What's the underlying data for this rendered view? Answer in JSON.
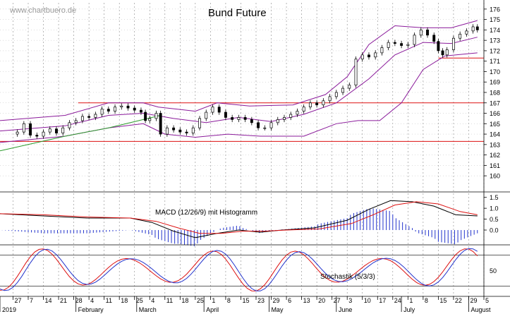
{
  "watermark": "www.chartbuero.de",
  "chart_data": [
    {
      "type": "candlestick",
      "title": "Bund Future",
      "y_ticks": [
        176,
        175,
        174,
        173,
        172,
        171,
        170,
        169,
        168,
        167,
        166,
        165,
        164,
        163,
        162,
        161,
        160
      ],
      "ylim": [
        159.4,
        176.6
      ],
      "x_range_days": [
        -10,
        213
      ],
      "horizontal_lines": [
        167.0,
        163.3,
        171.3
      ],
      "approx_series": {
        "close": [
          {
            "x": -2,
            "y": 164.2
          },
          {
            "x": 1,
            "y": 165.0
          },
          {
            "x": 4,
            "y": 163.9
          },
          {
            "x": 7,
            "y": 163.8
          },
          {
            "x": 10,
            "y": 164.2
          },
          {
            "x": 13,
            "y": 164.5
          },
          {
            "x": 16,
            "y": 164.1
          },
          {
            "x": 19,
            "y": 164.6
          },
          {
            "x": 22,
            "y": 165.1
          },
          {
            "x": 25,
            "y": 165.3
          },
          {
            "x": 28,
            "y": 165.7
          },
          {
            "x": 31,
            "y": 165.6
          },
          {
            "x": 34,
            "y": 165.9
          },
          {
            "x": 37,
            "y": 166.4
          },
          {
            "x": 40,
            "y": 166.2
          },
          {
            "x": 43,
            "y": 166.6
          },
          {
            "x": 46,
            "y": 166.7
          },
          {
            "x": 49,
            "y": 166.5
          },
          {
            "x": 52,
            "y": 166.3
          },
          {
            "x": 55,
            "y": 166.1
          },
          {
            "x": 57,
            "y": 165.3
          },
          {
            "x": 59,
            "y": 165.5
          },
          {
            "x": 62,
            "y": 166.0
          },
          {
            "x": 64,
            "y": 164.0
          },
          {
            "x": 67,
            "y": 164.6
          },
          {
            "x": 70,
            "y": 164.4
          },
          {
            "x": 73,
            "y": 164.2
          },
          {
            "x": 76,
            "y": 164.1
          },
          {
            "x": 79,
            "y": 164.6
          },
          {
            "x": 82,
            "y": 165.5
          },
          {
            "x": 85,
            "y": 166.1
          },
          {
            "x": 88,
            "y": 166.6
          },
          {
            "x": 91,
            "y": 166.1
          },
          {
            "x": 94,
            "y": 165.6
          },
          {
            "x": 97,
            "y": 165.4
          },
          {
            "x": 100,
            "y": 165.6
          },
          {
            "x": 103,
            "y": 165.4
          },
          {
            "x": 106,
            "y": 165.1
          },
          {
            "x": 109,
            "y": 164.6
          },
          {
            "x": 112,
            "y": 164.6
          },
          {
            "x": 115,
            "y": 165.1
          },
          {
            "x": 118,
            "y": 165.4
          },
          {
            "x": 121,
            "y": 165.6
          },
          {
            "x": 124,
            "y": 165.9
          },
          {
            "x": 127,
            "y": 166.2
          },
          {
            "x": 130,
            "y": 166.6
          },
          {
            "x": 133,
            "y": 167.0
          },
          {
            "x": 136,
            "y": 166.8
          },
          {
            "x": 139,
            "y": 167.2
          },
          {
            "x": 142,
            "y": 167.6
          },
          {
            "x": 145,
            "y": 168.0
          },
          {
            "x": 148,
            "y": 168.4
          },
          {
            "x": 151,
            "y": 168.7
          },
          {
            "x": 154,
            "y": 171.2
          },
          {
            "x": 157,
            "y": 171.6
          },
          {
            "x": 160,
            "y": 171.4
          },
          {
            "x": 163,
            "y": 171.8
          },
          {
            "x": 166,
            "y": 172.3
          },
          {
            "x": 169,
            "y": 172.8
          },
          {
            "x": 172,
            "y": 172.7
          },
          {
            "x": 175,
            "y": 172.5
          },
          {
            "x": 178,
            "y": 172.6
          },
          {
            "x": 181,
            "y": 173.5
          },
          {
            "x": 184,
            "y": 174.0
          },
          {
            "x": 187,
            "y": 173.5
          },
          {
            "x": 190,
            "y": 172.9
          },
          {
            "x": 192,
            "y": 172.0
          },
          {
            "x": 194,
            "y": 171.6
          },
          {
            "x": 196,
            "y": 172.1
          },
          {
            "x": 199,
            "y": 173.2
          },
          {
            "x": 202,
            "y": 173.6
          },
          {
            "x": 205,
            "y": 173.9
          },
          {
            "x": 208,
            "y": 174.3
          },
          {
            "x": 210,
            "y": 174.0
          }
        ],
        "bollinger_upper": [
          {
            "x": -10,
            "y": 165.3
          },
          {
            "x": 20,
            "y": 165.8
          },
          {
            "x": 40,
            "y": 167.0
          },
          {
            "x": 56,
            "y": 167.0
          },
          {
            "x": 63,
            "y": 166.6
          },
          {
            "x": 80,
            "y": 166.2
          },
          {
            "x": 90,
            "y": 167.0
          },
          {
            "x": 105,
            "y": 166.7
          },
          {
            "x": 125,
            "y": 166.8
          },
          {
            "x": 140,
            "y": 167.8
          },
          {
            "x": 150,
            "y": 169.5
          },
          {
            "x": 160,
            "y": 172.6
          },
          {
            "x": 172,
            "y": 174.4
          },
          {
            "x": 185,
            "y": 174.2
          },
          {
            "x": 198,
            "y": 174.2
          },
          {
            "x": 210,
            "y": 174.9
          }
        ],
        "bollinger_middle": [
          {
            "x": -10,
            "y": 164.3
          },
          {
            "x": 20,
            "y": 164.8
          },
          {
            "x": 40,
            "y": 165.8
          },
          {
            "x": 56,
            "y": 166.0
          },
          {
            "x": 70,
            "y": 165.5
          },
          {
            "x": 85,
            "y": 165.1
          },
          {
            "x": 100,
            "y": 165.6
          },
          {
            "x": 115,
            "y": 165.2
          },
          {
            "x": 130,
            "y": 165.9
          },
          {
            "x": 145,
            "y": 167.0
          },
          {
            "x": 160,
            "y": 169.3
          },
          {
            "x": 172,
            "y": 171.6
          },
          {
            "x": 185,
            "y": 172.8
          },
          {
            "x": 198,
            "y": 172.7
          },
          {
            "x": 210,
            "y": 173.3
          }
        ],
        "bollinger_lower": [
          {
            "x": -10,
            "y": 163.2
          },
          {
            "x": 20,
            "y": 163.8
          },
          {
            "x": 40,
            "y": 164.6
          },
          {
            "x": 56,
            "y": 165.0
          },
          {
            "x": 66,
            "y": 164.0
          },
          {
            "x": 80,
            "y": 163.7
          },
          {
            "x": 95,
            "y": 164.0
          },
          {
            "x": 110,
            "y": 163.8
          },
          {
            "x": 130,
            "y": 163.8
          },
          {
            "x": 145,
            "y": 165.0
          },
          {
            "x": 155,
            "y": 165.3
          },
          {
            "x": 165,
            "y": 165.3
          },
          {
            "x": 175,
            "y": 167.0
          },
          {
            "x": 185,
            "y": 170.2
          },
          {
            "x": 195,
            "y": 171.5
          },
          {
            "x": 210,
            "y": 171.8
          }
        ],
        "moving_average": [
          {
            "x": -10,
            "y": 162.4
          },
          {
            "x": 20,
            "y": 163.8
          },
          {
            "x": 40,
            "y": 164.6
          },
          {
            "x": 64,
            "y": 165.8
          }
        ]
      },
      "colors": {
        "candle": "#000000",
        "bollinger": "#8a1a9a",
        "moving_average": "#2a9a2a",
        "line": "#dd1111",
        "grid": "#888888"
      }
    },
    {
      "type": "line",
      "label": "MACD (12/26/9) mit Histogramm",
      "y_ticks": [
        "1.5",
        "1.0",
        "0.5",
        "0.0"
      ],
      "ylim": [
        -0.55,
        1.75
      ],
      "series": [
        {
          "values": [
            {
              "x": -10,
              "y": 0.75
            },
            {
              "x": 10,
              "y": 0.65
            },
            {
              "x": 30,
              "y": 0.55
            },
            {
              "x": 50,
              "y": 0.55
            },
            {
              "x": 60,
              "y": 0.35
            },
            {
              "x": 70,
              "y": -0.05
            },
            {
              "x": 80,
              "y": -0.35
            },
            {
              "x": 90,
              "y": -0.15
            },
            {
              "x": 100,
              "y": 0.0
            },
            {
              "x": 110,
              "y": -0.1
            },
            {
              "x": 120,
              "y": 0.0
            },
            {
              "x": 135,
              "y": 0.1
            },
            {
              "x": 150,
              "y": 0.45
            },
            {
              "x": 160,
              "y": 0.95
            },
            {
              "x": 170,
              "y": 1.35
            },
            {
              "x": 180,
              "y": 1.3
            },
            {
              "x": 190,
              "y": 1.1
            },
            {
              "x": 200,
              "y": 0.7
            },
            {
              "x": 210,
              "y": 0.65
            }
          ]
        },
        {
          "values": [
            {
              "x": -10,
              "y": 0.75
            },
            {
              "x": 10,
              "y": 0.7
            },
            {
              "x": 30,
              "y": 0.6
            },
            {
              "x": 50,
              "y": 0.55
            },
            {
              "x": 62,
              "y": 0.4
            },
            {
              "x": 72,
              "y": 0.1
            },
            {
              "x": 82,
              "y": -0.15
            },
            {
              "x": 92,
              "y": -0.15
            },
            {
              "x": 102,
              "y": -0.05
            },
            {
              "x": 112,
              "y": -0.05
            },
            {
              "x": 122,
              "y": 0.0
            },
            {
              "x": 137,
              "y": 0.05
            },
            {
              "x": 152,
              "y": 0.3
            },
            {
              "x": 162,
              "y": 0.7
            },
            {
              "x": 172,
              "y": 1.15
            },
            {
              "x": 182,
              "y": 1.3
            },
            {
              "x": 192,
              "y": 1.2
            },
            {
              "x": 202,
              "y": 0.85
            },
            {
              "x": 210,
              "y": 0.7
            }
          ]
        }
      ],
      "colors": [
        "#000000",
        "#dd1111"
      ]
    },
    {
      "type": "line",
      "label": "Stochastik (5/3/3)",
      "y_ticks": [
        "50"
      ],
      "ylim": [
        0,
        100
      ],
      "reference_lines": [
        80,
        20
      ],
      "approx_cycles": "oscillating series between ~10 and ~95"
    }
  ],
  "x_axis": {
    "days": [
      "27",
      "7",
      "14",
      "21",
      "28",
      "4",
      "11",
      "18",
      "25",
      "4",
      "11",
      "18",
      "25",
      "1",
      "8",
      "15",
      "23",
      "29",
      "6",
      "13",
      "20",
      "27",
      "3",
      "10",
      "17",
      "24",
      "1",
      "8",
      "15",
      "22",
      "29",
      "5"
    ],
    "months": [
      "2019",
      "February",
      "March",
      "April",
      "May",
      "June",
      "July",
      "August"
    ]
  }
}
